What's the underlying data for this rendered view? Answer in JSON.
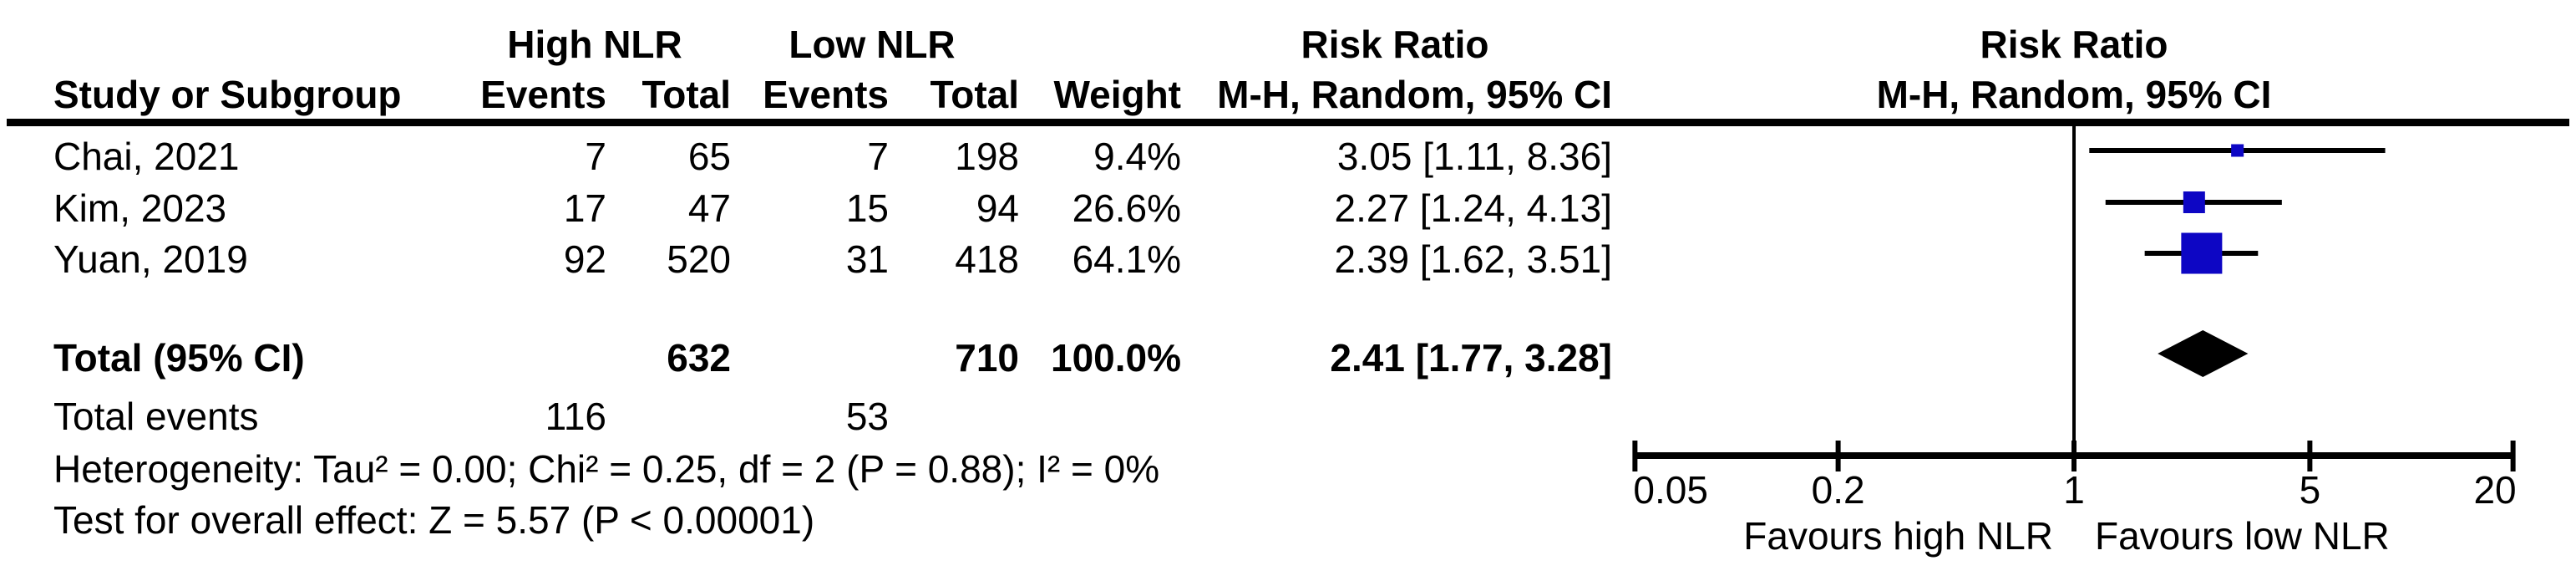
{
  "table": {
    "group_high_label": "High NLR",
    "group_low_label": "Low NLR",
    "effect_col_title": "Risk Ratio",
    "effect_col_subtitle": "M-H, Random, 95% CI",
    "plot_col_title": "Risk Ratio",
    "plot_col_subtitle": "M-H, Random, 95% CI",
    "headers": {
      "study": "Study or Subgroup",
      "events": "Events",
      "total": "Total",
      "events2": "Events",
      "total2": "Total",
      "weight": "Weight"
    },
    "rows": [
      {
        "study": "Chai, 2021",
        "e1": "7",
        "t1": "65",
        "e2": "7",
        "t2": "198",
        "weight": "9.4%",
        "ci": "3.05 [1.11, 8.36]"
      },
      {
        "study": "Kim, 2023",
        "e1": "17",
        "t1": "47",
        "e2": "15",
        "t2": "94",
        "weight": "26.6%",
        "ci": "2.27 [1.24, 4.13]"
      },
      {
        "study": "Yuan, 2019",
        "e1": "92",
        "t1": "520",
        "e2": "31",
        "t2": "418",
        "weight": "64.1%",
        "ci": "2.39 [1.62, 3.51]"
      }
    ],
    "total_row": {
      "label": "Total (95% CI)",
      "t1": "632",
      "t2": "710",
      "weight": "100.0%",
      "ci": "2.41 [1.77, 3.28]"
    },
    "total_events_row": {
      "label": "Total events",
      "e1": "116",
      "e2": "53"
    },
    "heterogeneity_line": "Heterogeneity: Tau² = 0.00; Chi² = 0.25, df = 2 (P = 0.88); I² = 0%",
    "overall_effect_line": "Test for overall effect: Z = 5.57 (P < 0.00001)"
  },
  "chart_data": {
    "type": "forest",
    "x_scale": "log",
    "x_ticks": [
      0.05,
      0.2,
      1,
      5,
      20
    ],
    "x_range": [
      0.05,
      20
    ],
    "null_line_value": 1,
    "studies": [
      {
        "label": "Chai, 2021",
        "rr": 3.05,
        "ci_low": 1.11,
        "ci_high": 8.36,
        "weight_pct": 9.4
      },
      {
        "label": "Kim, 2023",
        "rr": 2.27,
        "ci_low": 1.24,
        "ci_high": 4.13,
        "weight_pct": 26.6
      },
      {
        "label": "Yuan, 2019",
        "rr": 2.39,
        "ci_low": 1.62,
        "ci_high": 3.51,
        "weight_pct": 64.1
      }
    ],
    "overall": {
      "label": "Total (95% CI)",
      "rr": 2.41,
      "ci_low": 1.77,
      "ci_high": 3.28,
      "weight_pct": 100.0
    },
    "favours_left_label": "Favours high NLR",
    "favours_right_label": "Favours low NLR",
    "marker_color": "#0d06c4",
    "ci_line_color": "#000000",
    "diamond_color": "#000000",
    "axis_color": "#000000"
  }
}
